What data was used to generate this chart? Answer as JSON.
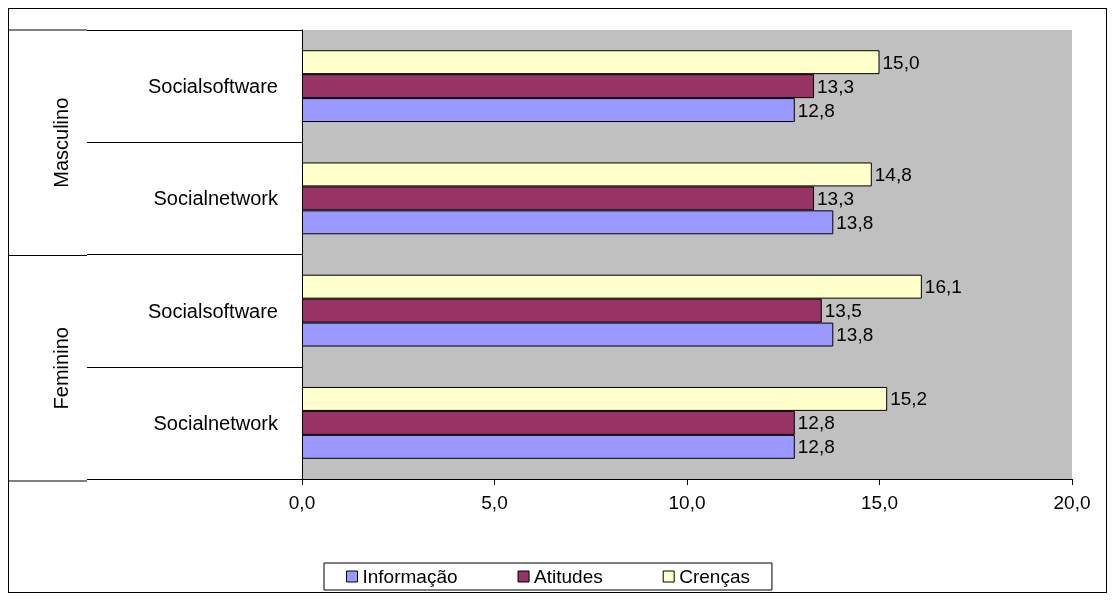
{
  "chart_data": {
    "type": "bar",
    "orientation": "horizontal",
    "categories": [
      "Socialsoftware",
      "Socialnetwork",
      "Socialsoftware",
      "Socialnetwork"
    ],
    "annotations": [
      "Masculino",
      "Feminino"
    ],
    "series": [
      {
        "name": "Informação",
        "color": "#9999ff",
        "values": [
          12.8,
          13.8,
          13.8,
          12.8
        ],
        "value_labels": [
          "12,8",
          "13,8",
          "13,8",
          "12,8"
        ]
      },
      {
        "name": "Atitudes",
        "color": "#993366",
        "values": [
          13.3,
          13.3,
          13.5,
          12.8
        ],
        "value_labels": [
          "13,3",
          "13,3",
          "13,5",
          "12,8"
        ]
      },
      {
        "name": "Crenças",
        "color": "#ffffcc",
        "values": [
          15.0,
          14.8,
          16.1,
          15.2
        ],
        "value_labels": [
          "15,0",
          "14,8",
          "16,1",
          "15,2"
        ]
      }
    ],
    "xlim": [
      0,
      20
    ],
    "xticks": [
      {
        "value": 0,
        "label": "0,0"
      },
      {
        "value": 5,
        "label": "5,0"
      },
      {
        "value": 10,
        "label": "10,0"
      },
      {
        "value": 15,
        "label": "15,0"
      },
      {
        "value": 20,
        "label": "20,0"
      }
    ],
    "grid": false,
    "legend": "bottom"
  }
}
